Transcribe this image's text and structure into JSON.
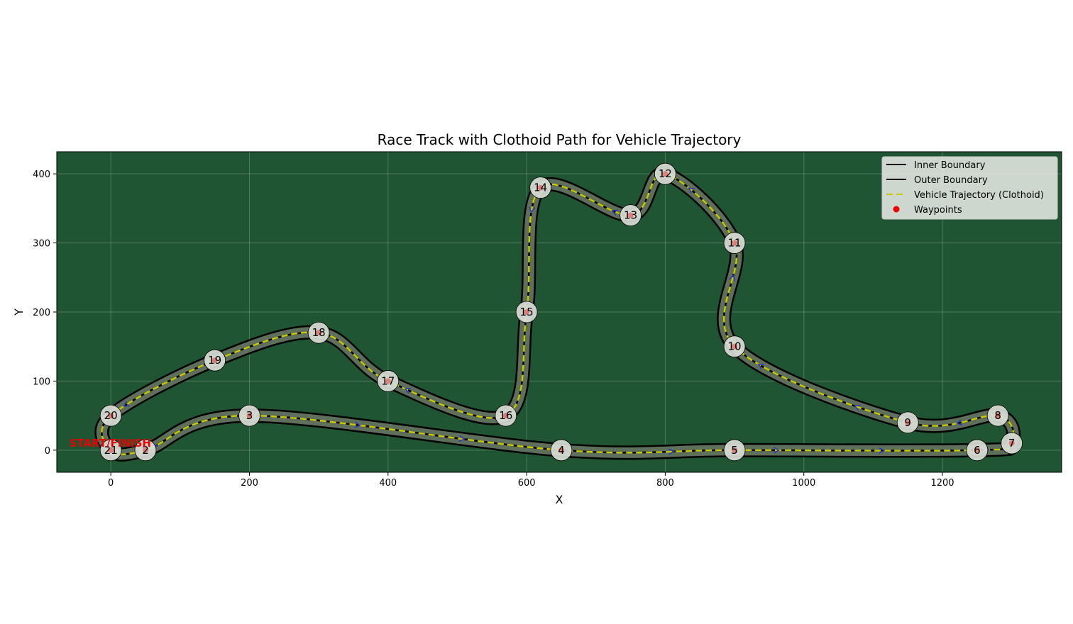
{
  "chart_data": {
    "type": "line",
    "title": "Race Track with Clothoid Path for Vehicle Trajectory",
    "xlabel": "X",
    "ylabel": "Y",
    "xlim": [
      -78,
      1372
    ],
    "ylim": [
      -32,
      432
    ],
    "xticks": [
      0,
      200,
      400,
      600,
      800,
      1000,
      1200
    ],
    "yticks": [
      0,
      100,
      200,
      300,
      400
    ],
    "grid": true,
    "legend_position": "top-right",
    "legend": [
      {
        "label": "Inner Boundary",
        "style": "solid",
        "color": "#000000"
      },
      {
        "label": "Outer Boundary",
        "style": "solid",
        "color": "#000000"
      },
      {
        "label": "Vehicle Trajectory (Clothoid)",
        "style": "dashed",
        "color": "#c8c800"
      },
      {
        "label": "Waypoints",
        "style": "marker",
        "color": "#ee0000"
      }
    ],
    "waypoints": [
      {
        "id": "21",
        "x": 0,
        "y": 0
      },
      {
        "id": "2",
        "x": 50,
        "y": 0
      },
      {
        "id": "3",
        "x": 200,
        "y": 50
      },
      {
        "id": "4",
        "x": 650,
        "y": 0
      },
      {
        "id": "5",
        "x": 900,
        "y": 0
      },
      {
        "id": "6",
        "x": 1250,
        "y": 0
      },
      {
        "id": "7",
        "x": 1300,
        "y": 10
      },
      {
        "id": "8",
        "x": 1280,
        "y": 50
      },
      {
        "id": "9",
        "x": 1150,
        "y": 40
      },
      {
        "id": "10",
        "x": 900,
        "y": 150
      },
      {
        "id": "11",
        "x": 900,
        "y": 300
      },
      {
        "id": "12",
        "x": 800,
        "y": 400
      },
      {
        "id": "13",
        "x": 750,
        "y": 340
      },
      {
        "id": "14",
        "x": 620,
        "y": 380
      },
      {
        "id": "15",
        "x": 600,
        "y": 200
      },
      {
        "id": "16",
        "x": 570,
        "y": 50
      },
      {
        "id": "17",
        "x": 400,
        "y": 100
      },
      {
        "id": "18",
        "x": 300,
        "y": 170
      },
      {
        "id": "19",
        "x": 150,
        "y": 130
      },
      {
        "id": "20",
        "x": 0,
        "y": 50
      }
    ],
    "start_label": {
      "text": "START/FINISH",
      "x": -60,
      "y": 10
    },
    "colors": {
      "background": "#1f5532",
      "track_surface": "#5e6f5c",
      "boundary": "#000000",
      "trajectory": "#c8c800",
      "waypoint": "#ee0000",
      "waypoint_circle": "#d9ddd6",
      "direction_arrow": "#2a35c8",
      "start_text": "#ee0000"
    }
  }
}
